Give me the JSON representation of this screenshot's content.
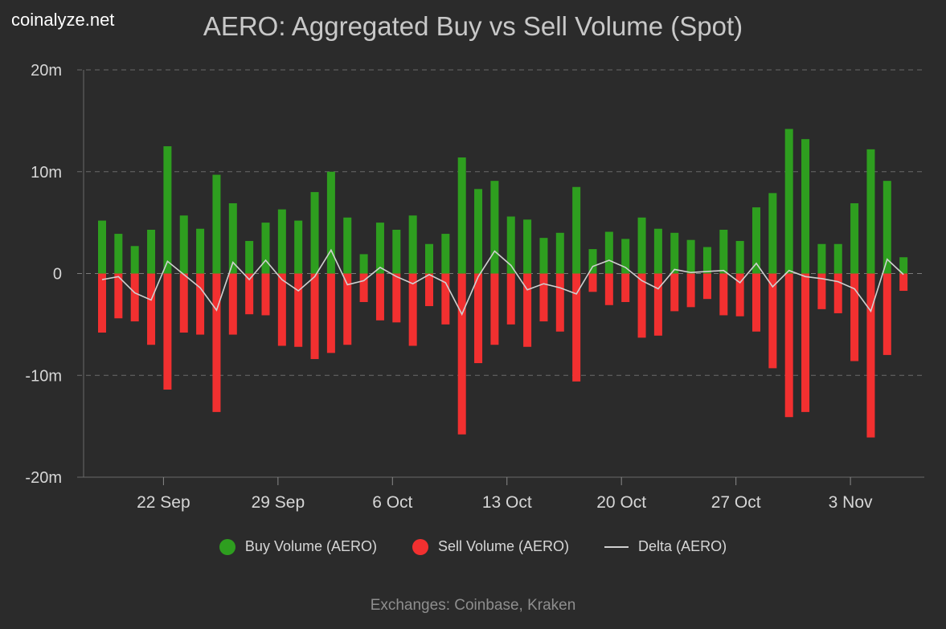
{
  "brand": "coinalyze.net",
  "footer": "Exchanges: Coinbase, Kraken",
  "colors": {
    "buy": "#2e9e1f",
    "sell": "#f23030",
    "delta": "#d0d0d0",
    "grid": "#6a6a6a",
    "text": "#d6d6d6"
  },
  "chart_data": {
    "type": "bar",
    "title": "AERO: Aggregated Buy vs Sell Volume (Spot)",
    "ylim": [
      -20,
      20
    ],
    "y_ticks": [
      {
        "value": 20,
        "label": "20m"
      },
      {
        "value": 10,
        "label": "10m"
      },
      {
        "value": 0,
        "label": "0"
      },
      {
        "value": -10,
        "label": "-10m"
      },
      {
        "value": -20,
        "label": "-20m"
      }
    ],
    "x_start_date": "2024-09-16",
    "x_ticks": [
      {
        "index": 4,
        "label": "22 Sep"
      },
      {
        "index": 11,
        "label": "29 Sep"
      },
      {
        "index": 18,
        "label": "6 Oct"
      },
      {
        "index": 25,
        "label": "13 Oct"
      },
      {
        "index": 32,
        "label": "20 Oct"
      },
      {
        "index": 39,
        "label": "27 Oct"
      },
      {
        "index": 46,
        "label": "3 Nov"
      }
    ],
    "grid": true,
    "legend_position": "bottom",
    "series": [
      {
        "name": "Buy Volume (AERO)",
        "kind": "bar",
        "values": [
          5.2,
          3.9,
          2.7,
          4.3,
          12.5,
          5.7,
          4.4,
          9.7,
          6.9,
          3.2,
          5.0,
          6.3,
          5.2,
          8.0,
          10.0,
          5.5,
          1.9,
          5.0,
          4.3,
          5.7,
          2.9,
          3.9,
          11.4,
          8.3,
          9.1,
          5.6,
          5.3,
          3.5,
          4.0,
          8.5,
          2.4,
          4.1,
          3.4,
          5.5,
          4.4,
          4.0,
          3.3,
          2.6,
          4.3,
          3.2,
          6.5,
          7.9,
          14.2,
          13.2,
          2.9,
          2.9,
          6.9,
          12.2,
          9.1,
          1.6
        ]
      },
      {
        "name": "Sell Volume (AERO)",
        "kind": "bar",
        "values": [
          -5.8,
          -4.4,
          -4.7,
          -7.0,
          -11.4,
          -5.8,
          -6.0,
          -13.6,
          -6.0,
          -4.0,
          -4.1,
          -7.1,
          -7.2,
          -8.4,
          -7.8,
          -7.0,
          -2.8,
          -4.6,
          -4.8,
          -7.1,
          -3.2,
          -5.0,
          -15.8,
          -8.8,
          -7.0,
          -5.0,
          -7.2,
          -4.7,
          -5.7,
          -10.6,
          -1.8,
          -3.1,
          -2.8,
          -6.3,
          -6.1,
          -3.7,
          -3.3,
          -2.5,
          -4.1,
          -4.2,
          -5.7,
          -9.3,
          -14.1,
          -13.6,
          -3.5,
          -3.9,
          -8.6,
          -16.1,
          -8.0,
          -1.7
        ]
      },
      {
        "name": "Delta (AERO)",
        "kind": "line",
        "values": [
          -0.6,
          -0.3,
          -1.9,
          -2.6,
          1.2,
          -0.1,
          -1.4,
          -3.6,
          1.1,
          -0.6,
          1.3,
          -0.6,
          -1.7,
          -0.3,
          2.3,
          -1.1,
          -0.7,
          0.6,
          -0.3,
          -1.0,
          -0.1,
          -0.9,
          -4.0,
          -0.3,
          2.2,
          0.8,
          -1.6,
          -1.0,
          -1.4,
          -2.0,
          0.7,
          1.3,
          0.6,
          -0.7,
          -1.5,
          0.4,
          0.1,
          0.2,
          0.3,
          -0.9,
          1.0,
          -1.3,
          0.3,
          -0.3,
          -0.5,
          -0.8,
          -1.5,
          -3.7,
          1.4,
          -0.1
        ]
      }
    ]
  }
}
